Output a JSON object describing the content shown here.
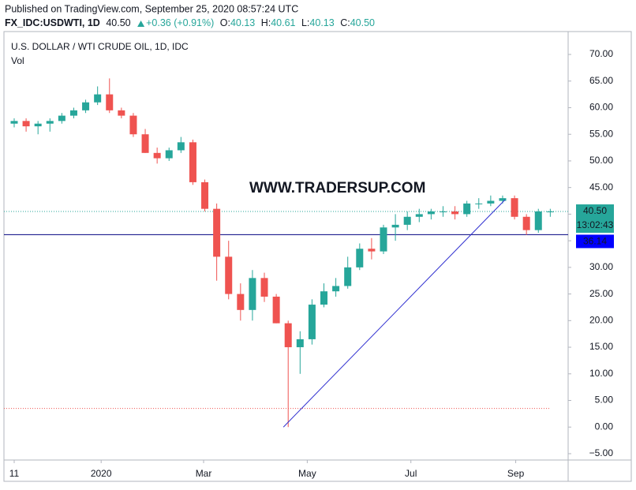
{
  "header": {
    "published": "Published on TradingView.com, September 25, 2020 08:57:24 UTC",
    "symbol": "FX_IDC:USDWTI, 1D",
    "last": "40.50",
    "change": "+0.36 (+0.91%)",
    "ohlc": [
      {
        "label": "O:",
        "value": "40.13"
      },
      {
        "label": "H:",
        "value": "40.61"
      },
      {
        "label": "L:",
        "value": "40.13"
      },
      {
        "label": "C:",
        "value": "40.50"
      }
    ]
  },
  "chart_data": {
    "type": "candlestick",
    "title": "U.S. DOLLAR / WTI CRUDE OIL, 1D, IDC",
    "subtitle": "Vol",
    "annotation": "WWW.TRADERSUP.COM",
    "x": [
      0,
      1,
      2,
      3,
      4,
      5,
      6,
      7,
      8,
      9,
      10,
      11,
      12,
      13,
      14,
      15,
      16,
      17,
      18,
      19,
      20,
      21,
      22,
      23,
      24,
      25,
      26,
      27,
      28,
      29,
      30,
      31,
      32,
      33,
      34,
      35,
      36,
      37,
      38,
      39,
      40,
      41,
      42,
      43,
      44,
      45
    ],
    "open": [
      57,
      57.5,
      56.5,
      57,
      57.5,
      58.5,
      59.5,
      61,
      62.5,
      59.5,
      58.5,
      55,
      51.5,
      50.5,
      52,
      53.5,
      46,
      41,
      32,
      25,
      22,
      28,
      24.5,
      19.5,
      15,
      16.5,
      23,
      25.5,
      26.5,
      30,
      33.5,
      33,
      37.5,
      38,
      39.5,
      40,
      40.5,
      40.5,
      40,
      42,
      42,
      42.5,
      43,
      39.5,
      37,
      40.5
    ],
    "high": [
      58,
      58,
      57.5,
      58,
      59,
      60,
      61.5,
      64,
      65.5,
      60,
      59,
      56,
      52.5,
      52.5,
      54.5,
      54,
      46.5,
      42,
      35,
      27,
      29.5,
      29,
      25,
      20,
      18,
      24,
      27,
      28,
      32,
      34.5,
      35.5,
      38,
      40,
      40.5,
      41,
      41,
      41.5,
      41.5,
      42.5,
      43,
      43.5,
      43.5,
      43.5,
      40,
      41,
      41
    ],
    "low": [
      56.3,
      55.5,
      55,
      55.5,
      57,
      58,
      59,
      60.5,
      59,
      58,
      54.5,
      51.5,
      49.5,
      50,
      51.5,
      45.5,
      40.5,
      27.5,
      24,
      20,
      20,
      23.5,
      19.5,
      0,
      10,
      15.5,
      22.5,
      24.5,
      26,
      29.5,
      31.5,
      32.5,
      35,
      37,
      38.5,
      39,
      39.5,
      39,
      39.5,
      41,
      41.5,
      42,
      39,
      36.1,
      36.5,
      39.5
    ],
    "close": [
      57.5,
      56.5,
      57,
      57.5,
      58.5,
      59.5,
      61,
      62.5,
      59.5,
      58.5,
      55,
      51.5,
      50.5,
      52,
      53.5,
      46,
      41,
      32,
      25,
      22,
      28,
      24.5,
      19.5,
      15,
      16.5,
      23,
      25.5,
      26.5,
      30,
      33.5,
      33,
      37.5,
      38,
      39.5,
      40,
      40.5,
      40.5,
      40,
      42,
      42,
      42.5,
      43,
      39.5,
      37,
      40.5,
      40.5
    ],
    "up_color": "#26a69a",
    "down_color": "#ef5350",
    "xlim": [
      -0.86,
      46.5
    ],
    "xticks": [
      {
        "value": 0,
        "label": "11"
      },
      {
        "value": 7.3,
        "label": "2020"
      },
      {
        "value": 15.9,
        "label": "Mar"
      },
      {
        "value": 24.6,
        "label": "May"
      },
      {
        "value": 33.3,
        "label": "Jul"
      },
      {
        "value": 42.1,
        "label": "Sep"
      }
    ],
    "ylim": [
      -6.19,
      74.3
    ],
    "yticks": [
      {
        "value": 70,
        "label": "70.00"
      },
      {
        "value": 65,
        "label": "65.00"
      },
      {
        "value": 60,
        "label": "60.00"
      },
      {
        "value": 55,
        "label": "55.00"
      },
      {
        "value": 50,
        "label": "50.00"
      },
      {
        "value": 45,
        "label": "45.00"
      },
      {
        "value": 40,
        "label": "40.00"
      },
      {
        "value": 35,
        "label": "35.00"
      },
      {
        "value": 30,
        "label": "30.00"
      },
      {
        "value": 25,
        "label": "25.00"
      },
      {
        "value": 20,
        "label": "20.00"
      },
      {
        "value": 15,
        "label": "15.00"
      },
      {
        "value": 10,
        "label": "10.00"
      },
      {
        "value": 5,
        "label": "5.00"
      },
      {
        "value": 0,
        "label": "0.00"
      },
      {
        "value": -5,
        "label": "−5.00"
      }
    ],
    "last_price": {
      "value": 40.5,
      "label": "40.50"
    },
    "countdown": "13:02:43",
    "level": {
      "value": 36.14,
      "label": "36.14"
    },
    "alert_line": 3.5,
    "trendline": {
      "x": [
        22.6,
        41.2
      ],
      "y": [
        0,
        42.7
      ]
    }
  }
}
